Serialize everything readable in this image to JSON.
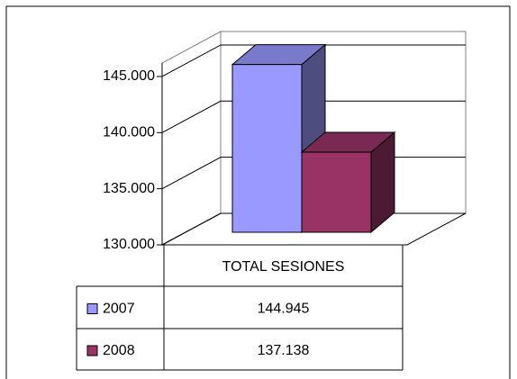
{
  "chart_data": {
    "type": "bar3d",
    "categories": [
      "TOTAL SESIONES"
    ],
    "series": [
      {
        "name": "2007",
        "color": "#9999ff",
        "values": [
          144945
        ],
        "value_labels": [
          "144.945"
        ]
      },
      {
        "name": "2008",
        "color": "#993366",
        "values": [
          137138
        ],
        "value_labels": [
          "137.138"
        ]
      }
    ],
    "ylim": [
      130000,
      146200
    ],
    "yticks": [
      {
        "value": 130000,
        "label": "130.000"
      },
      {
        "value": 135000,
        "label": "135.000"
      },
      {
        "value": 140000,
        "label": "140.000"
      },
      {
        "value": 145000,
        "label": "145.000"
      }
    ],
    "grid": true,
    "legend": "data-table"
  }
}
